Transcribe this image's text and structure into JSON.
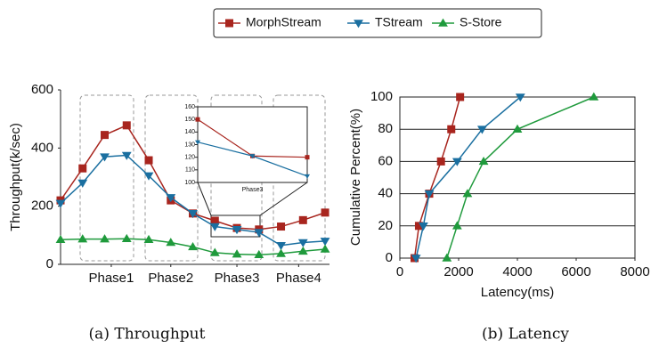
{
  "chart_data": [
    {
      "type": "line",
      "ylabel": "Throughput(k/sec)",
      "caption": "(a) Throughput",
      "x": [
        1,
        2,
        3,
        4,
        5,
        6,
        7,
        8,
        9,
        10,
        11,
        12,
        13
      ],
      "xlim": [
        1,
        13.2
      ],
      "ylim": [
        0,
        600
      ],
      "yticks": [
        0,
        200,
        400,
        600
      ],
      "xticks": [
        {
          "value": 3.3,
          "label": "Phase1"
        },
        {
          "value": 6,
          "label": "Phase2"
        },
        {
          "value": 9,
          "label": "Phase3"
        },
        {
          "value": 11.8,
          "label": "Phase4"
        }
      ],
      "grid": false,
      "series": [
        {
          "name": "MorphStream",
          "color": "#a8251e",
          "marker": "square",
          "values": [
            220,
            330,
            445,
            478,
            358,
            220,
            175,
            150,
            125,
            120,
            130,
            152,
            178
          ]
        },
        {
          "name": "TStream",
          "color": "#1a6fa0",
          "marker": "triangle-down",
          "values": [
            210,
            280,
            370,
            375,
            305,
            230,
            175,
            130,
            120,
            110,
            65,
            75,
            80
          ]
        },
        {
          "name": "S-Store",
          "color": "#1f9a3c",
          "marker": "triangle-up",
          "values": [
            85,
            87,
            87,
            88,
            85,
            75,
            60,
            40,
            35,
            33,
            37,
            45,
            52
          ]
        }
      ]
    },
    {
      "type": "line",
      "xlabel": "Phase3",
      "x": [
        1,
        2,
        3
      ],
      "xlim": [
        1,
        3
      ],
      "ylim": [
        100,
        160
      ],
      "yticks": [
        100,
        110,
        120,
        130,
        140,
        150,
        160
      ],
      "grid": false,
      "series": [
        {
          "color": "#a8251e",
          "marker": "square",
          "values": [
            150,
            121,
            120
          ]
        },
        {
          "color": "#1a6fa0",
          "marker": "triangle-down",
          "values": [
            132,
            121,
            105
          ]
        }
      ]
    },
    {
      "type": "line",
      "xlabel": "Latency(ms)",
      "ylabel": "Cumulative Percent(%)",
      "caption": "(b) Latency",
      "xlim": [
        0,
        8000
      ],
      "xticks": [
        0,
        2000,
        4000,
        6000,
        8000
      ],
      "ylim": [
        0,
        100
      ],
      "yticks": [
        0,
        20,
        40,
        60,
        80,
        100
      ],
      "grid": true,
      "series": [
        {
          "color": "#a8251e",
          "marker": "square",
          "x": [
            500,
            650,
            1000,
            1400,
            1750,
            2050
          ],
          "values": [
            0,
            20,
            40,
            60,
            80,
            100
          ]
        },
        {
          "color": "#1a6fa0",
          "marker": "triangle-down",
          "x": [
            550,
            800,
            1000,
            1950,
            2800,
            4100
          ],
          "values": [
            0,
            20,
            40,
            60,
            80,
            100
          ]
        },
        {
          "color": "#1f9a3c",
          "marker": "triangle-up",
          "x": [
            1600,
            1950,
            2300,
            2850,
            4000,
            6600
          ],
          "values": [
            0,
            20,
            40,
            60,
            80,
            100
          ]
        }
      ]
    }
  ]
}
